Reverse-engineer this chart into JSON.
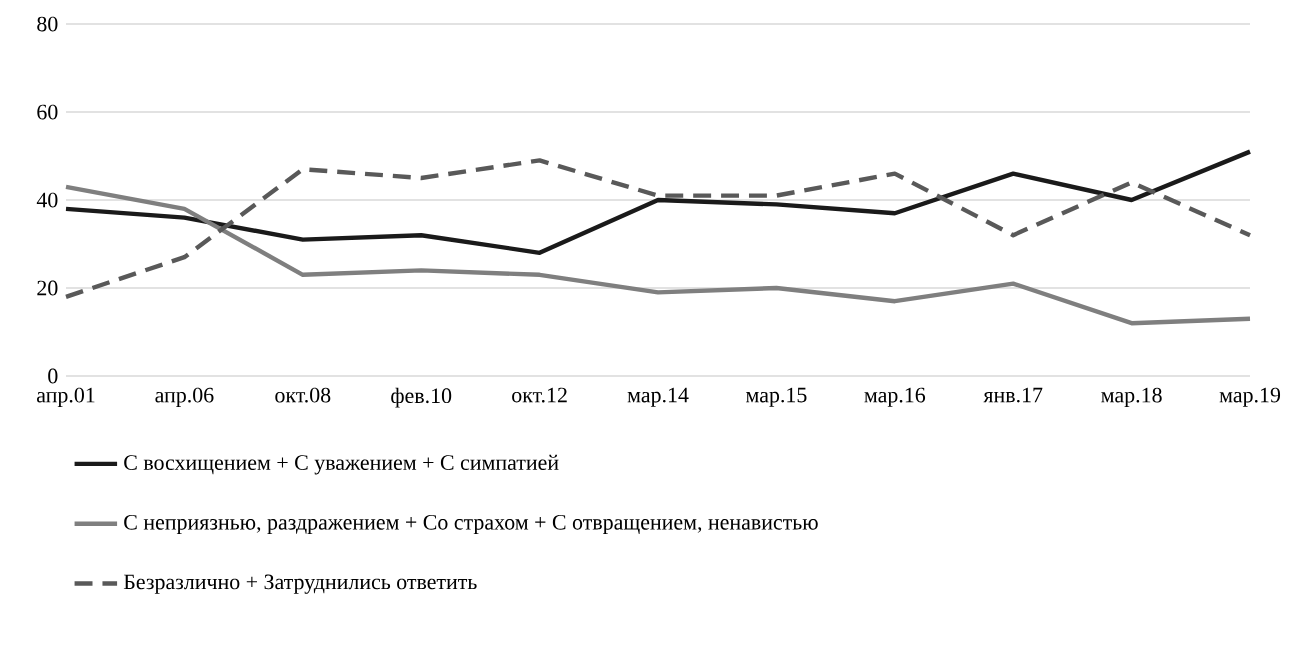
{
  "chart_data": {
    "type": "line",
    "categories": [
      "апр.01",
      "апр.06",
      "окт.08",
      "фев.10",
      "окт.12",
      "мар.14",
      "мар.15",
      "мар.16",
      "янв.17",
      "мар.18",
      "мар.19"
    ],
    "series": [
      {
        "name": "С восхищением + С уважением + С симпатией",
        "color": "#1a1a1a",
        "line_style": "solid",
        "values": [
          38,
          36,
          31,
          32,
          28,
          40,
          39,
          37,
          46,
          40,
          51
        ]
      },
      {
        "name": "С неприязнью, раздражением + Со страхом + С отвращением, ненавистью",
        "color": "#7f7f7f",
        "line_style": "solid",
        "values": [
          43,
          38,
          23,
          24,
          23,
          19,
          20,
          17,
          21,
          12,
          13
        ]
      },
      {
        "name": "Безразлично + Затруднились ответить",
        "color": "#595959",
        "line_style": "dashed",
        "values": [
          18,
          27,
          47,
          45,
          49,
          41,
          41,
          46,
          32,
          44,
          32
        ]
      }
    ],
    "ylim": [
      0,
      80
    ],
    "yticks": [
      0,
      20,
      40,
      60,
      80
    ],
    "grid": "y",
    "legend": "bottom",
    "marker": "none"
  }
}
